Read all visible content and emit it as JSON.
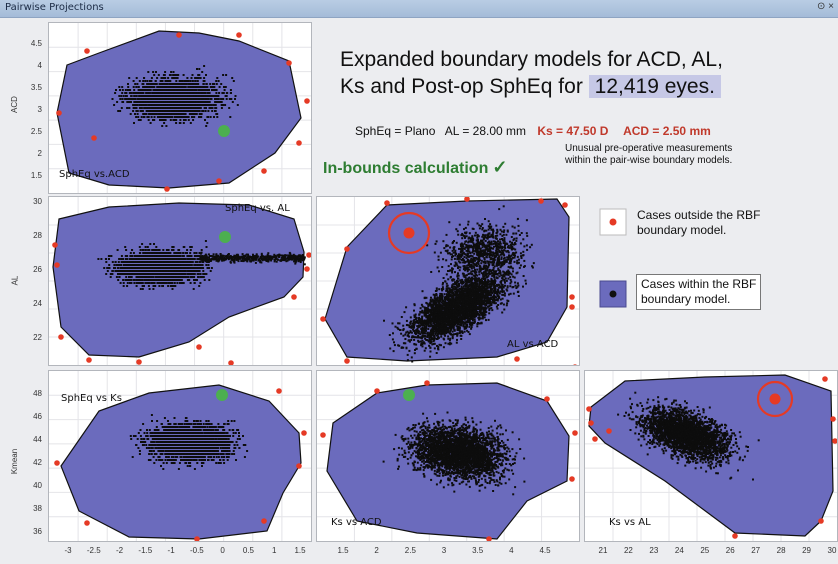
{
  "window": {
    "title": "Pairwise Projections",
    "controls": "⊙ ×"
  },
  "headline": {
    "line1": "Expanded boundary models for ACD, AL,",
    "line2_a": "Ks and Post-op SphEq for",
    "line2_b": "12,419 eyes."
  },
  "params": {
    "sph": "SphEq = Plano",
    "al": "AL = 28.00 mm",
    "ks": "Ks = 47.50 D",
    "acd": "ACD = 2.50 mm"
  },
  "in_bounds": {
    "text": "In-bounds calculation",
    "check": "✓"
  },
  "note": {
    "line1": "Unusual pre-operative measurements",
    "line2": "within the pair-wise boundary models."
  },
  "legend": {
    "outside": {
      "line1": "Cases outside the RBF",
      "line2": "boundary model.",
      "color": "#e53a25"
    },
    "within": {
      "line1": "Cases within the RBF",
      "line2": "boundary model.",
      "color": "#111111",
      "fill": "#6b6bbd"
    }
  },
  "axes": {
    "y_titles": {
      "acd": "ACD",
      "al": "AL",
      "kmean": "Kmean"
    },
    "acd_ticks": [
      "4.5",
      "4",
      "3.5",
      "3",
      "2.5",
      "2",
      "1.5"
    ],
    "al_ticks": [
      "30",
      "28",
      "26",
      "24",
      "22"
    ],
    "ks_ticks": [
      "48",
      "46",
      "44",
      "42",
      "40",
      "38",
      "36"
    ],
    "x_sph_ticks": [
      "-3",
      "-2.5",
      "-2",
      "-1.5",
      "-1",
      "-0.5",
      "0",
      "0.5",
      "1",
      "1.5"
    ],
    "x_acd_ticks": [
      "1.5",
      "2",
      "2.5",
      "3",
      "3.5",
      "4",
      "4.5"
    ],
    "x_al_ticks": [
      "21",
      "22",
      "23",
      "24",
      "25",
      "26",
      "27",
      "28",
      "29",
      "30"
    ]
  },
  "panels": {
    "sph_acd": {
      "label": "SphEq vs.ACD"
    },
    "sph_al": {
      "label": "SphEq vs. AL"
    },
    "acd_al": {
      "label": "AL vs ACD"
    },
    "sph_ks": {
      "label": "SphEq vs Ks"
    },
    "acd_ks": {
      "label": "Ks vs ACD"
    },
    "al_ks": {
      "label": "Ks vs AL"
    }
  },
  "colors": {
    "region": "#6b6bbd",
    "outside": "#e53a25",
    "green": "#4caf50",
    "ring": "#e53a25"
  }
}
